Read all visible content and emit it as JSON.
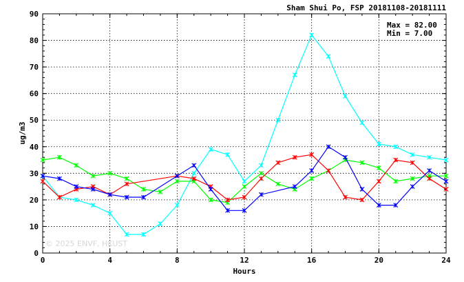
{
  "chart_data": {
    "type": "line",
    "title": "Sham Shui Po, FSP 20181108-20181111",
    "stats": {
      "max_label": "Max = 82.00",
      "min_label": "Min =  7.00"
    },
    "xlabel": "Hours",
    "ylabel": "ug/m3",
    "xlim": [
      0,
      24
    ],
    "ylim": [
      0,
      90
    ],
    "xticks": [
      0,
      4,
      8,
      12,
      16,
      20,
      24
    ],
    "yticks": [
      0,
      10,
      20,
      30,
      40,
      50,
      60,
      70,
      80,
      90
    ],
    "grid": true,
    "watermark": "© 2025 ENVF, HKUST",
    "x": [
      0,
      1,
      2,
      3,
      4,
      5,
      6,
      7,
      8,
      9,
      10,
      11,
      12,
      13,
      14,
      15,
      16,
      17,
      18,
      19,
      20,
      21,
      22,
      23,
      24
    ],
    "series": [
      {
        "color": "#00ffff",
        "values": [
          29,
          21,
          20,
          18,
          15,
          7,
          7,
          11,
          18,
          30,
          39,
          37,
          27,
          33,
          50,
          67,
          82,
          74,
          59,
          49,
          41,
          40,
          37,
          36,
          35
        ]
      },
      {
        "color": "#00ff00",
        "values": [
          35,
          36,
          33,
          29,
          30,
          28,
          24,
          23,
          27,
          27,
          20,
          19,
          25,
          30,
          26,
          24,
          28,
          31,
          35,
          34,
          32,
          27,
          28,
          29,
          29
        ]
      },
      {
        "color": "#ff0000",
        "values": [
          27,
          21,
          24,
          25,
          22,
          26,
          null,
          null,
          29,
          28,
          25,
          20,
          21,
          28,
          34,
          36,
          37,
          31,
          21,
          20,
          27,
          35,
          34,
          28,
          24
        ]
      },
      {
        "color": "#0000ff",
        "values": [
          29,
          28,
          25,
          24,
          22,
          21,
          21,
          null,
          29,
          33,
          24,
          16,
          16,
          22,
          null,
          25,
          31,
          40,
          36,
          24,
          18,
          18,
          25,
          31,
          27
        ]
      }
    ]
  }
}
